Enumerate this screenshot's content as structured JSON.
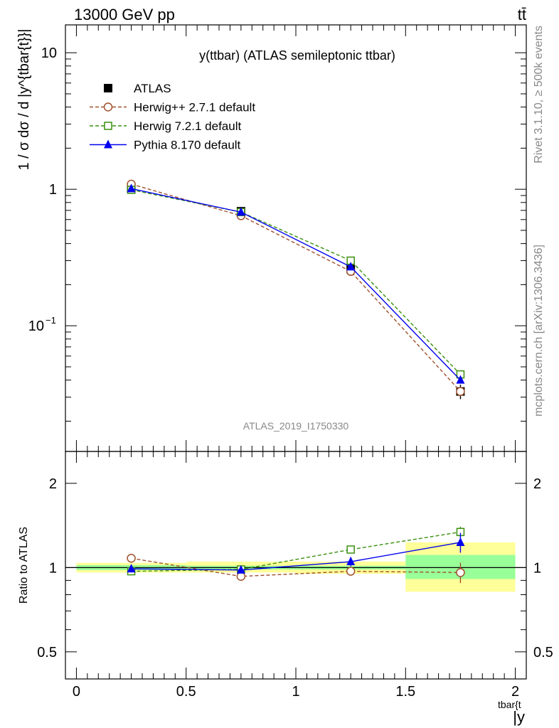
{
  "header": {
    "left": "13000 GeV pp",
    "right": "tt̄"
  },
  "side_labels": {
    "rivet": "Rivet 3.1.10, ≥ 500k events",
    "mcplots": "mcplots.cern.ch [arXiv:1306.3436]"
  },
  "chart_data": [
    {
      "type": "scatter",
      "title": "y(ttbar) (ATLAS semileptonic ttbar)",
      "watermark": "ATLAS_2019_I1750330",
      "ylabel": "1 / σ dσ / d |y^{tbar{t}}|",
      "yscale": "log",
      "ylim": [
        0.012,
        16
      ],
      "xlim": [
        -0.05,
        2.05
      ],
      "legend_position": "top-left",
      "y_ticks": [
        "10^{-1}",
        "1",
        "10"
      ],
      "series": [
        {
          "name": "ATLAS",
          "color": "#000000",
          "marker": "filled-square",
          "line": "none",
          "x": [
            0.25,
            0.75,
            1.25,
            1.75
          ],
          "values": [
            1.01,
            0.69,
            0.26,
            0.033
          ],
          "yerr": [
            0.02,
            0.015,
            0.01,
            0.004
          ]
        },
        {
          "name": "Herwig++ 2.7.1 default",
          "color": "#a0522d",
          "marker": "open-circle",
          "line": "dashed",
          "x": [
            0.25,
            0.75,
            1.25,
            1.75
          ],
          "values": [
            1.09,
            0.64,
            0.25,
            0.033
          ]
        },
        {
          "name": "Herwig 7.2.1 default",
          "color": "#3a8f0f",
          "marker": "open-square",
          "line": "dashed",
          "x": [
            0.25,
            0.75,
            1.25,
            1.75
          ],
          "values": [
            0.99,
            0.68,
            0.3,
            0.044
          ]
        },
        {
          "name": "Pythia 8.170 default",
          "color": "#0000ee",
          "marker": "filled-triangle",
          "line": "solid",
          "x": [
            0.25,
            0.75,
            1.25,
            1.75
          ],
          "values": [
            1.01,
            0.68,
            0.27,
            0.04
          ]
        }
      ]
    },
    {
      "type": "scatter",
      "ylabel": "Ratio to ATLAS",
      "xlabel": "|y^{tbar{t}}|",
      "yscale": "log",
      "ylim": [
        0.4,
        2.6
      ],
      "xlim": [
        -0.05,
        2.05
      ],
      "x_ticks": [
        "0",
        "0.5",
        "1",
        "1.5",
        "2"
      ],
      "y_ticks": [
        "0.5",
        "1",
        "2"
      ],
      "bands": {
        "bins": [
          [
            0,
            0.5
          ],
          [
            0.5,
            1.0
          ],
          [
            1.0,
            1.5
          ],
          [
            1.5,
            2.0
          ]
        ],
        "stat_low": [
          0.98,
          0.985,
          0.985,
          0.91
        ],
        "stat_high": [
          1.02,
          1.015,
          1.015,
          1.11
        ],
        "total_low": [
          0.96,
          0.96,
          0.95,
          0.82
        ],
        "total_high": [
          1.04,
          1.05,
          1.05,
          1.23
        ],
        "stat_color": "#99ff99",
        "total_color": "#ffff99"
      },
      "series": [
        {
          "name": "Herwig++ 2.7.1 default",
          "color": "#a0522d",
          "marker": "open-circle",
          "line": "dashed",
          "x": [
            0.25,
            0.75,
            1.25,
            1.75
          ],
          "values": [
            1.08,
            0.93,
            0.97,
            0.96
          ],
          "yerr": [
            0.0,
            0.0,
            0.03,
            0.08
          ]
        },
        {
          "name": "Herwig 7.2.1 default",
          "color": "#3a8f0f",
          "marker": "open-square",
          "line": "dashed",
          "x": [
            0.25,
            0.75,
            1.25,
            1.75
          ],
          "values": [
            0.97,
            0.985,
            1.16,
            1.34
          ],
          "yerr": [
            0.0,
            0.0,
            0.0,
            0.06
          ]
        },
        {
          "name": "Pythia 8.170 default",
          "color": "#0000ee",
          "marker": "filled-triangle",
          "line": "solid",
          "x": [
            0.25,
            0.75,
            1.25,
            1.75
          ],
          "values": [
            0.99,
            0.98,
            1.05,
            1.23
          ],
          "yerr": [
            0.02,
            0.02,
            0.04,
            0.1
          ]
        }
      ]
    }
  ]
}
